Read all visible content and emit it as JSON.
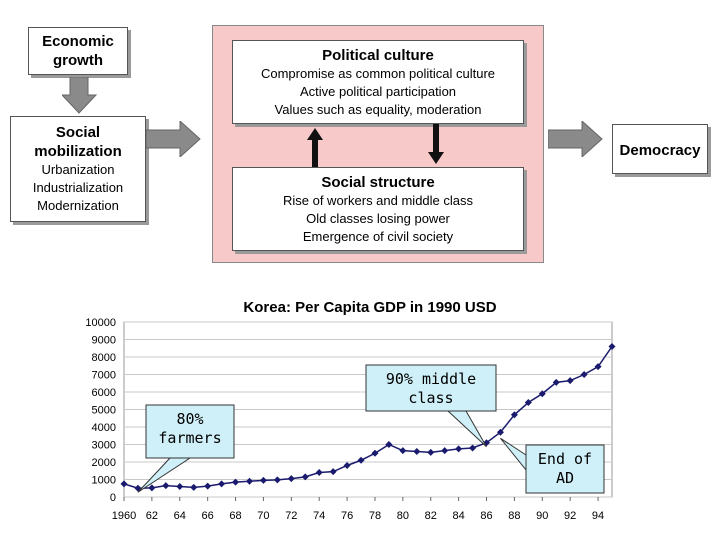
{
  "diagram": {
    "economic_growth": "Economic\ngrowth",
    "social_mobilization": {
      "title": "Social\nmobilization",
      "items": [
        "Urbanization",
        "Industrialization",
        "Modernization"
      ]
    },
    "political_culture": {
      "title": "Political culture",
      "items": [
        "Compromise as common political culture",
        "Active political participation",
        "Values such as equality, moderation"
      ]
    },
    "social_structure": {
      "title": "Social structure",
      "items": [
        "Rise of workers and middle class",
        "Old classes losing power",
        "Emergence of civil society"
      ]
    },
    "democracy": "Democracy",
    "colors": {
      "panel": "#f7c9c9",
      "arrow": "#808080"
    }
  },
  "chart_data": {
    "type": "line",
    "title": "Korea: Per Capita GDP in 1990 USD",
    "xlabel": "",
    "ylabel": "",
    "x": [
      1960,
      1961,
      1962,
      1963,
      1964,
      1965,
      1966,
      1967,
      1968,
      1969,
      1970,
      1971,
      1972,
      1973,
      1974,
      1975,
      1976,
      1977,
      1978,
      1979,
      1980,
      1981,
      1982,
      1983,
      1984,
      1985,
      1986,
      1987,
      1988,
      1989,
      1990,
      1991,
      1992,
      1993,
      1994,
      1995
    ],
    "values": [
      750,
      500,
      520,
      650,
      600,
      550,
      620,
      750,
      850,
      900,
      950,
      980,
      1050,
      1150,
      1400,
      1450,
      1800,
      2100,
      2500,
      3000,
      2650,
      2600,
      2550,
      2650,
      2750,
      2800,
      3100,
      3700,
      4700,
      5400,
      5900,
      6550,
      6650,
      7000,
      7450,
      8600
    ],
    "xticks": [
      "1960",
      "62",
      "64",
      "66",
      "68",
      "70",
      "72",
      "74",
      "76",
      "78",
      "80",
      "82",
      "84",
      "86",
      "88",
      "90",
      "92",
      "94"
    ],
    "xtick_years": [
      1960,
      1962,
      1964,
      1966,
      1968,
      1970,
      1972,
      1974,
      1976,
      1978,
      1980,
      1982,
      1984,
      1986,
      1988,
      1990,
      1992,
      1994
    ],
    "yticks": [
      "0",
      "1000",
      "2000",
      "3000",
      "4000",
      "5000",
      "6000",
      "7000",
      "8000",
      "9000",
      "10000"
    ],
    "ylim": [
      0,
      10000
    ],
    "xlim": [
      1960,
      1995
    ],
    "grid": true,
    "line_color": "#1a1a6e",
    "callouts": [
      {
        "text": "80%\nfarmers",
        "target_year": 1961
      },
      {
        "text": "90% middle\nclass",
        "target_year": 1986
      },
      {
        "text": "End of\nAD",
        "target_year": 1987
      }
    ],
    "callout_color": "#cff0f8"
  }
}
